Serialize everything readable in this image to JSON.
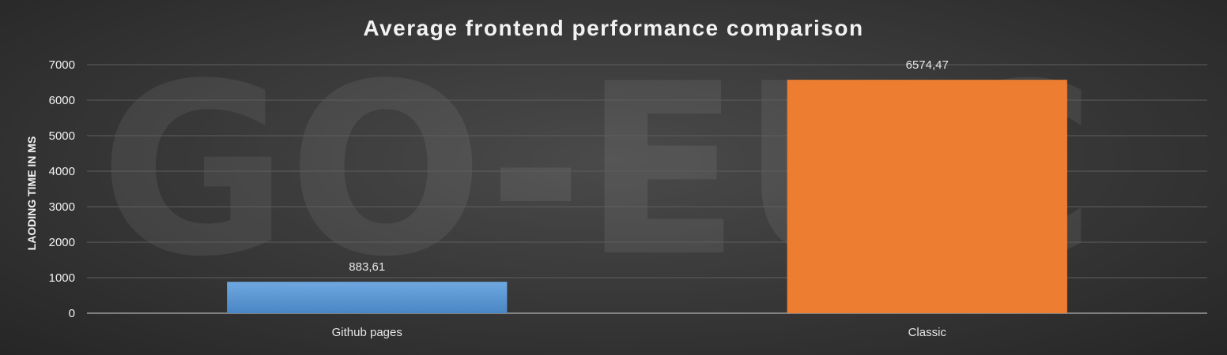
{
  "chart_data": {
    "type": "bar",
    "title": "Average frontend performance comparison",
    "ylabel": "LAODING TIME IN MS",
    "xlabel": "",
    "categories": [
      "Github pages",
      "Classic"
    ],
    "values": [
      883.61,
      6574.47
    ],
    "data_labels": [
      "883,61",
      "6574,47"
    ],
    "colors": [
      "#5b9bd5",
      "#ed7d31"
    ],
    "ylim": [
      0,
      7000
    ],
    "yticks": [
      0,
      1000,
      2000,
      3000,
      4000,
      5000,
      6000,
      7000
    ],
    "grid": true,
    "legend": "none"
  },
  "watermark": {
    "text": "GO-EUC"
  }
}
